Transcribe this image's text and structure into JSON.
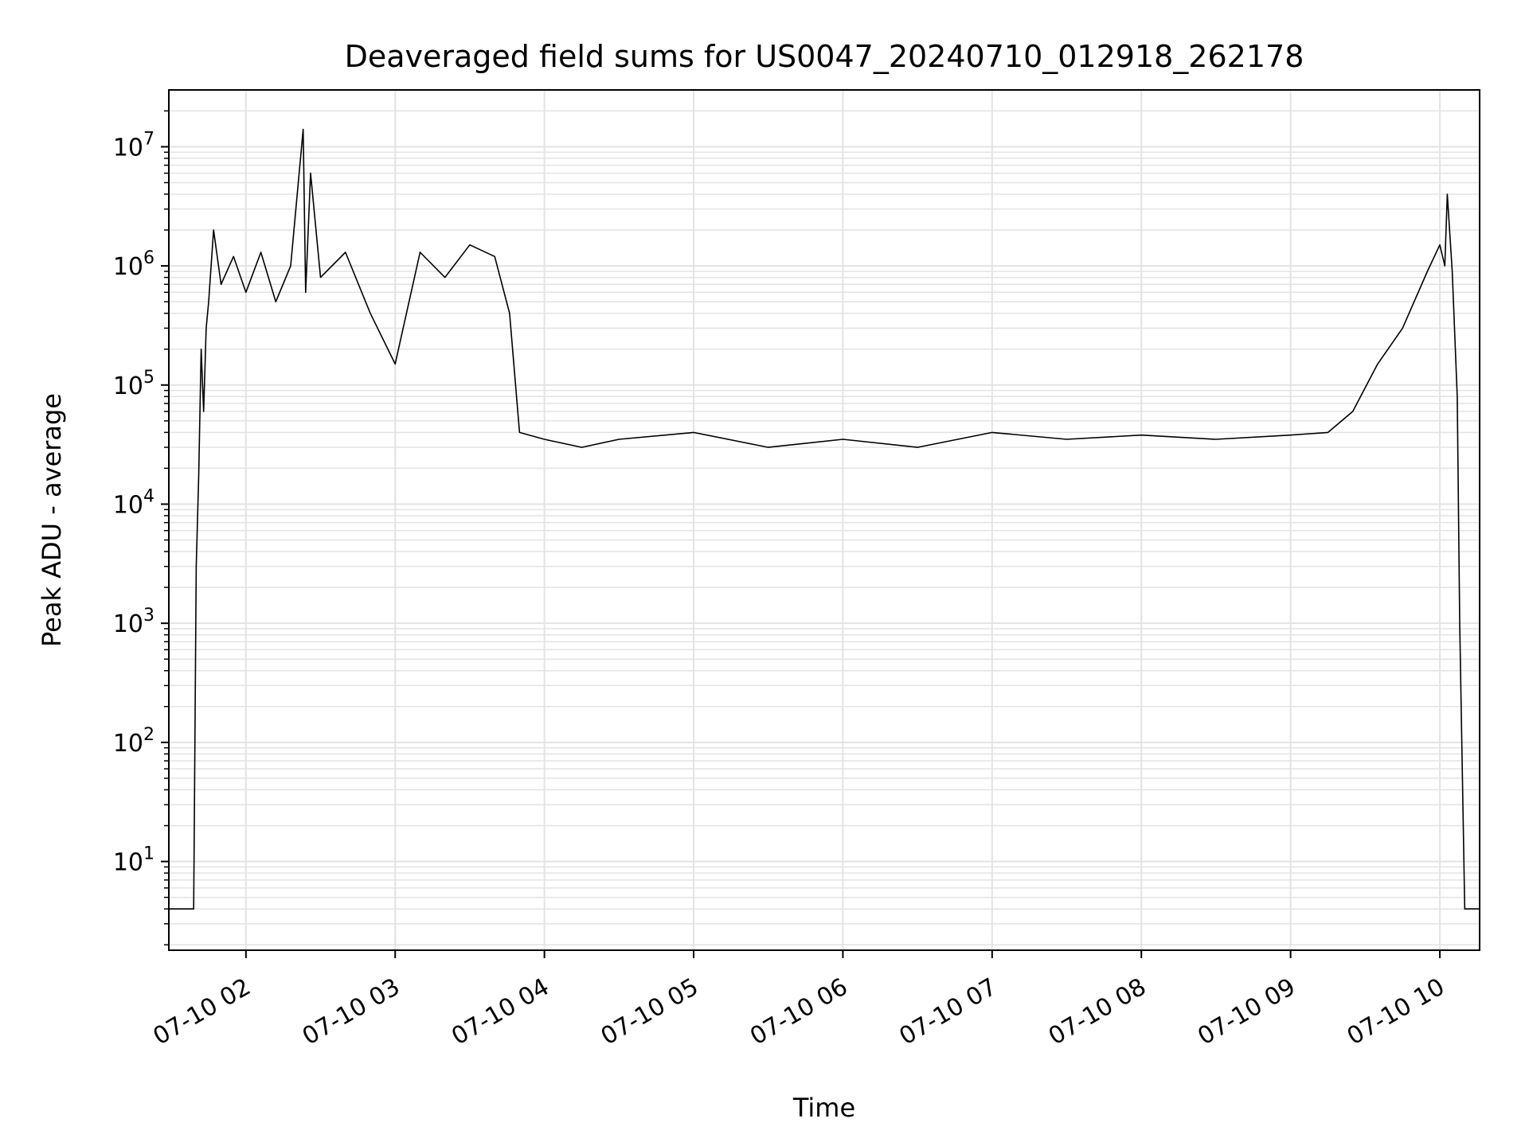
{
  "chart_data": {
    "type": "line",
    "title": "Deaveraged field sums for US0047_20240710_012918_262178",
    "xlabel": "Time",
    "ylabel": "Peak ADU - average",
    "y_scale": "log",
    "ylim": [
      1.8,
      30000000
    ],
    "xlim": [
      "2024-07-10 01:29",
      "2024-07-10 10:16"
    ],
    "grid": true,
    "grid_color": "#e3e3e3",
    "line_color": "#000000",
    "x_ticks": [
      {
        "t": "2024-07-10 02:00",
        "label": "07-10 02"
      },
      {
        "t": "2024-07-10 03:00",
        "label": "07-10 03"
      },
      {
        "t": "2024-07-10 04:00",
        "label": "07-10 04"
      },
      {
        "t": "2024-07-10 05:00",
        "label": "07-10 05"
      },
      {
        "t": "2024-07-10 06:00",
        "label": "07-10 06"
      },
      {
        "t": "2024-07-10 07:00",
        "label": "07-10 07"
      },
      {
        "t": "2024-07-10 08:00",
        "label": "07-10 08"
      },
      {
        "t": "2024-07-10 09:00",
        "label": "07-10 09"
      },
      {
        "t": "2024-07-10 10:00",
        "label": "07-10 10"
      }
    ],
    "y_ticks": [
      {
        "value": 10,
        "base": "10",
        "exp": "1"
      },
      {
        "value": 100,
        "base": "10",
        "exp": "2"
      },
      {
        "value": 1000,
        "base": "10",
        "exp": "3"
      },
      {
        "value": 10000,
        "base": "10",
        "exp": "4"
      },
      {
        "value": 100000,
        "base": "10",
        "exp": "5"
      },
      {
        "value": 1000000,
        "base": "10",
        "exp": "6"
      },
      {
        "value": 10000000,
        "base": "10",
        "exp": "7"
      }
    ],
    "series": [
      {
        "points": [
          [
            "2024-07-10 01:29",
            4
          ],
          [
            "2024-07-10 01:39",
            4
          ],
          [
            "2024-07-10 01:40",
            3000
          ],
          [
            "2024-07-10 01:41",
            17000
          ],
          [
            "2024-07-10 01:42",
            200000
          ],
          [
            "2024-07-10 01:43",
            60000
          ],
          [
            "2024-07-10 01:44",
            300000
          ],
          [
            "2024-07-10 01:45",
            500000
          ],
          [
            "2024-07-10 01:47",
            2000000
          ],
          [
            "2024-07-10 01:50",
            700000
          ],
          [
            "2024-07-10 01:55",
            1200000
          ],
          [
            "2024-07-10 02:00",
            600000
          ],
          [
            "2024-07-10 02:06",
            1300000
          ],
          [
            "2024-07-10 02:12",
            500000
          ],
          [
            "2024-07-10 02:18",
            1000000
          ],
          [
            "2024-07-10 02:23",
            14000000
          ],
          [
            "2024-07-10 02:24",
            600000
          ],
          [
            "2024-07-10 02:26",
            6000000
          ],
          [
            "2024-07-10 02:30",
            800000
          ],
          [
            "2024-07-10 02:40",
            1300000
          ],
          [
            "2024-07-10 02:50",
            400000
          ],
          [
            "2024-07-10 03:00",
            150000
          ],
          [
            "2024-07-10 03:10",
            1300000
          ],
          [
            "2024-07-10 03:20",
            800000
          ],
          [
            "2024-07-10 03:30",
            1500000
          ],
          [
            "2024-07-10 03:40",
            1200000
          ],
          [
            "2024-07-10 03:46",
            400000
          ],
          [
            "2024-07-10 03:50",
            40000
          ],
          [
            "2024-07-10 04:00",
            35000
          ],
          [
            "2024-07-10 04:15",
            30000
          ],
          [
            "2024-07-10 04:30",
            35000
          ],
          [
            "2024-07-10 05:00",
            40000
          ],
          [
            "2024-07-10 05:30",
            30000
          ],
          [
            "2024-07-10 06:00",
            35000
          ],
          [
            "2024-07-10 06:30",
            30000
          ],
          [
            "2024-07-10 07:00",
            40000
          ],
          [
            "2024-07-10 07:30",
            35000
          ],
          [
            "2024-07-10 08:00",
            38000
          ],
          [
            "2024-07-10 08:30",
            35000
          ],
          [
            "2024-07-10 09:00",
            38000
          ],
          [
            "2024-07-10 09:15",
            40000
          ],
          [
            "2024-07-10 09:25",
            60000
          ],
          [
            "2024-07-10 09:35",
            150000
          ],
          [
            "2024-07-10 09:45",
            300000
          ],
          [
            "2024-07-10 09:55",
            900000
          ],
          [
            "2024-07-10 10:00",
            1500000
          ],
          [
            "2024-07-10 10:02",
            1000000
          ],
          [
            "2024-07-10 10:03",
            4000000
          ],
          [
            "2024-07-10 10:05",
            900000
          ],
          [
            "2024-07-10 10:07",
            80000
          ],
          [
            "2024-07-10 10:08",
            1000
          ],
          [
            "2024-07-10 10:10",
            4
          ],
          [
            "2024-07-10 10:16",
            4
          ]
        ]
      }
    ]
  }
}
